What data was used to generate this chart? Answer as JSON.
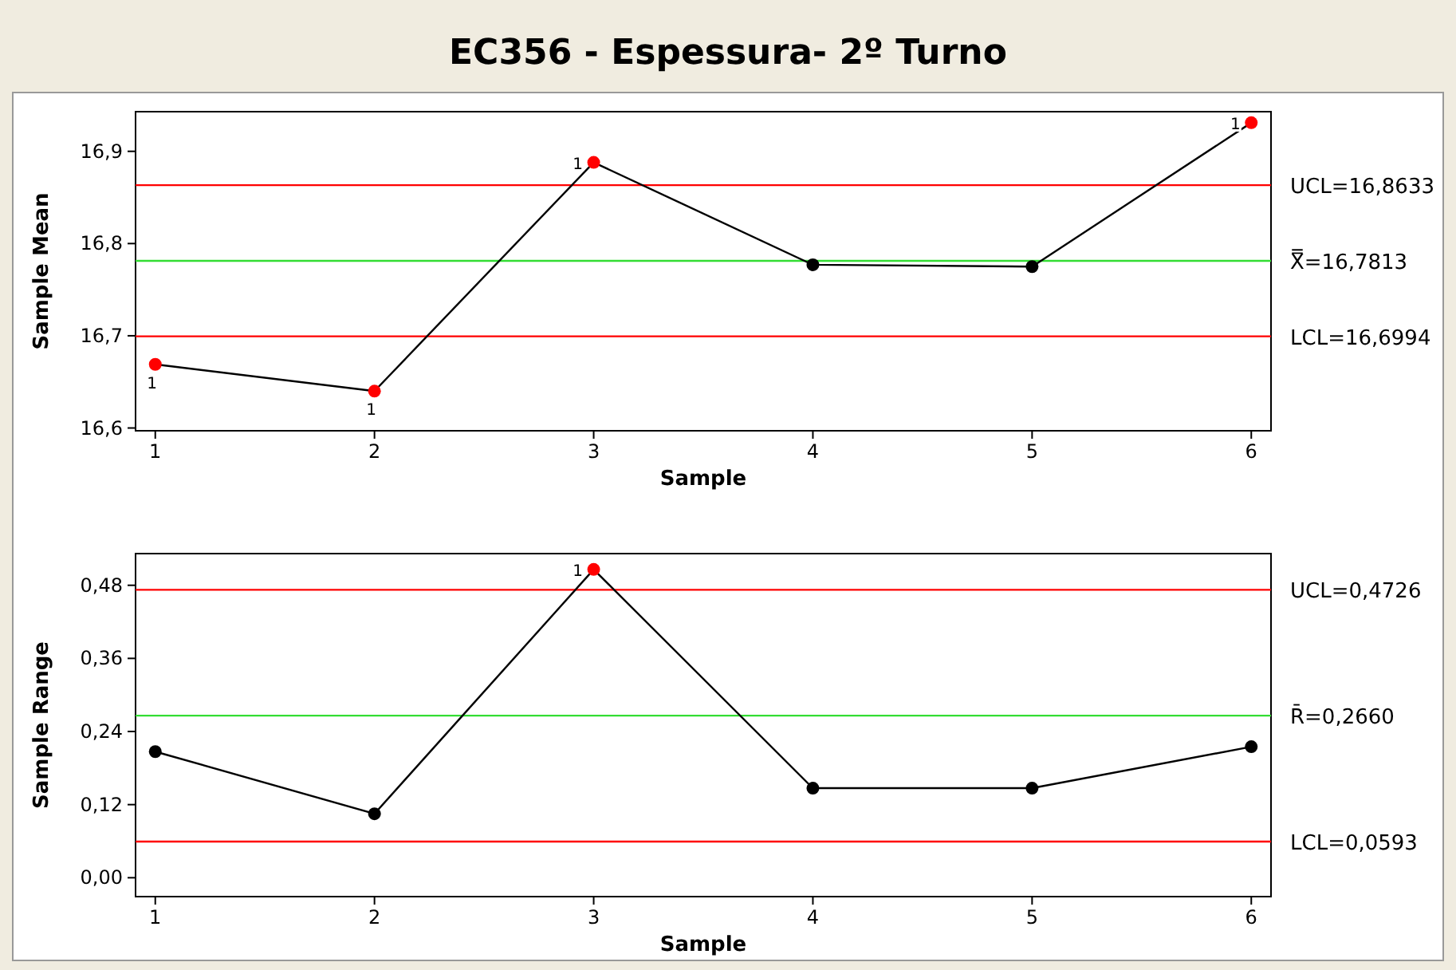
{
  "chart_data": [
    {
      "type": "line",
      "title": "EC356 - Espessura- 2º Turno",
      "xlabel": "Sample",
      "ylabel": "Sample Mean",
      "x": [
        1,
        2,
        3,
        4,
        5,
        6
      ],
      "xlim": [
        0.91,
        6.09
      ],
      "xticks": [
        1,
        2,
        3,
        4,
        5,
        6
      ],
      "ylim": [
        16.597,
        16.943
      ],
      "yticks": [
        {
          "value": 16.6,
          "label": "16,6"
        },
        {
          "value": 16.7,
          "label": "16,7"
        },
        {
          "value": 16.8,
          "label": "16,8"
        },
        {
          "value": 16.9,
          "label": "16,9"
        }
      ],
      "grid": false,
      "marker": "circle",
      "line_style": "solid",
      "series": [
        {
          "color": "#000000",
          "colors": [
            "#ff0000",
            "#ff0000",
            "#ff0000",
            "#000000",
            "#000000",
            "#ff0000"
          ],
          "values": [
            16.669,
            16.64,
            16.888,
            16.777,
            16.775,
            16.931
          ]
        }
      ],
      "ref_lines": [
        {
          "axis": "y",
          "value": 16.8633,
          "label": "UCL=16,8633",
          "color": "#ff0000"
        },
        {
          "axis": "y",
          "value": 16.7813,
          "label": "X̿=16,7813",
          "color": "#33dd33"
        },
        {
          "axis": "y",
          "value": 16.6994,
          "label": "LCL=16,6994",
          "color": "#ff0000"
        }
      ],
      "annotations": [
        {
          "text": "1",
          "x": 1,
          "y": 16.669
        },
        {
          "text": "1",
          "x": 2,
          "y": 16.64
        },
        {
          "text": "1",
          "x": 3,
          "y": 16.888
        },
        {
          "text": "1",
          "x": 6,
          "y": 16.931
        }
      ]
    },
    {
      "type": "line",
      "xlabel": "Sample",
      "ylabel": "Sample Range",
      "x": [
        1,
        2,
        3,
        4,
        5,
        6
      ],
      "xlim": [
        0.91,
        6.09
      ],
      "xticks": [
        1,
        2,
        3,
        4,
        5,
        6
      ],
      "ylim": [
        -0.031,
        0.532
      ],
      "yticks": [
        {
          "value": 0,
          "label": "0,00"
        },
        {
          "value": 0.12,
          "label": "0,12"
        },
        {
          "value": 0.24,
          "label": "0,24"
        },
        {
          "value": 0.36,
          "label": "0,36"
        },
        {
          "value": 0.48,
          "label": "0,48"
        }
      ],
      "grid": false,
      "marker": "circle",
      "line_style": "solid",
      "series": [
        {
          "color": "#000000",
          "colors": [
            "#000000",
            "#000000",
            "#ff0000",
            "#000000",
            "#000000",
            "#000000"
          ],
          "values": [
            0.207,
            0.105,
            0.506,
            0.147,
            0.147,
            0.215
          ]
        }
      ],
      "ref_lines": [
        {
          "axis": "y",
          "value": 0.4726,
          "label": "UCL=0,4726",
          "color": "#ff0000"
        },
        {
          "axis": "y",
          "value": 0.266,
          "label": "R̄=0,2660",
          "color": "#33dd33"
        },
        {
          "axis": "y",
          "value": 0.0593,
          "label": "LCL=0,0593",
          "color": "#ff0000"
        }
      ],
      "annotations": [
        {
          "text": "1",
          "x": 3,
          "y": 0.506
        }
      ]
    }
  ]
}
